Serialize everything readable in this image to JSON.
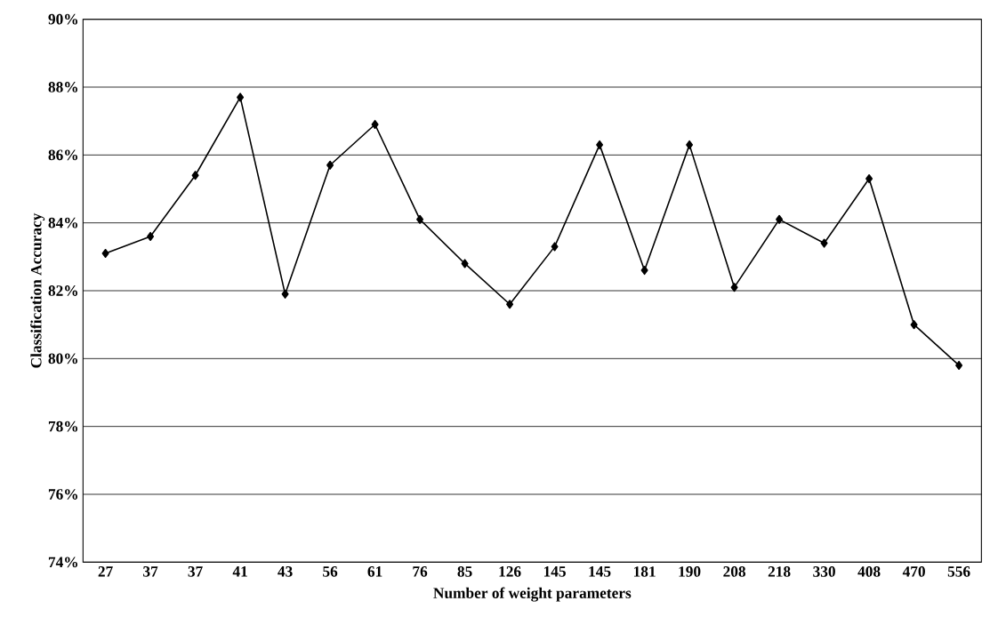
{
  "chart_data": {
    "type": "line",
    "xlabel": "Number of weight parameters",
    "ylabel": "Classification Accuracy",
    "categories": [
      "27",
      "37",
      "37",
      "41",
      "43",
      "56",
      "61",
      "76",
      "85",
      "126",
      "145",
      "145",
      "181",
      "190",
      "208",
      "218",
      "330",
      "408",
      "470",
      "556"
    ],
    "series": [
      {
        "color": "#000000",
        "values": [
          83.1,
          83.6,
          85.4,
          87.7,
          81.9,
          85.7,
          86.9,
          84.1,
          82.8,
          81.6,
          83.3,
          86.3,
          82.6,
          86.3,
          82.1,
          84.1,
          83.4,
          85.3,
          81.0,
          79.8
        ]
      }
    ],
    "ylim": [
      74,
      90
    ],
    "yticks": [
      {
        "value": 74,
        "label": "74%"
      },
      {
        "value": 76,
        "label": "76%"
      },
      {
        "value": 78,
        "label": "78%"
      },
      {
        "value": 80,
        "label": "80%"
      },
      {
        "value": 82,
        "label": "82%"
      },
      {
        "value": 84,
        "label": "84%"
      },
      {
        "value": 86,
        "label": "86%"
      },
      {
        "value": 88,
        "label": "88%"
      },
      {
        "value": 90,
        "label": "90%"
      }
    ],
    "grid": "y",
    "marker": "diamond",
    "line_style": "solid"
  }
}
